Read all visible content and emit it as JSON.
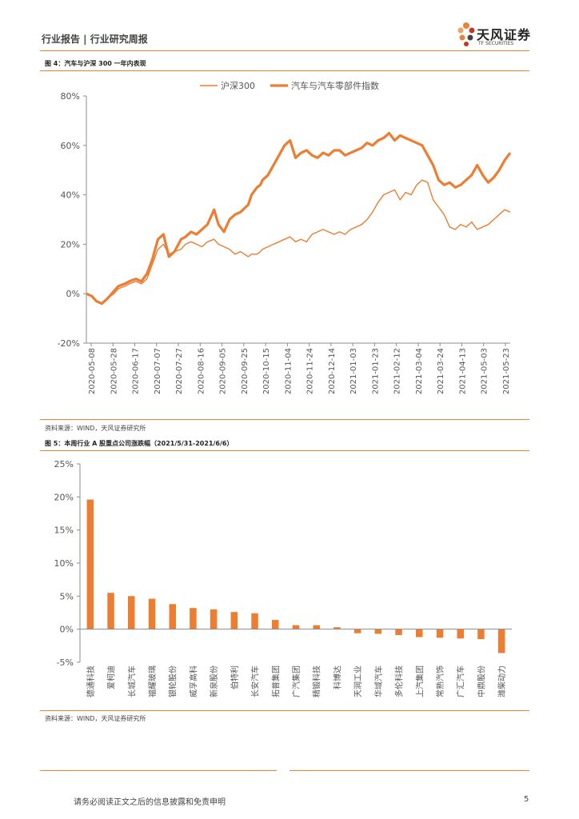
{
  "header": {
    "left_text": "行业报告 | 行业研究周报",
    "logo_cn": "天风证券",
    "logo_en": "TF SECURITIES"
  },
  "figure4": {
    "title": "图 4：汽车与沪深 300 一年内表现",
    "source": "资料来源：WIND，天风证券研究所"
  },
  "figure5": {
    "title": "图 5：本周行业 A 股重点公司涨跌幅（2021/5/31-2021/6/6）",
    "source": "资料来源：WIND，天风证券研究所"
  },
  "footer": {
    "disclaimer": "请务必阅读正文之后的信息披露和免责申明",
    "page": "5"
  },
  "colors": {
    "accent": "#e8833a",
    "series": "#ed7d31"
  },
  "chart_data": [
    {
      "type": "line",
      "title": "",
      "xlabel": "",
      "ylabel": "",
      "ylim": [
        -20,
        80
      ],
      "yticks": [
        "-20%",
        "0%",
        "20%",
        "40%",
        "60%",
        "80%"
      ],
      "xticks": [
        "2020-05-08",
        "2020-05-28",
        "2020-06-17",
        "2020-07-07",
        "2020-07-27",
        "2020-08-16",
        "2020-09-05",
        "2020-09-25",
        "2020-10-15",
        "2020-11-04",
        "2020-11-24",
        "2020-12-14",
        "2021-01-03",
        "2021-01-23",
        "2021-02-12",
        "2021-03-04",
        "2021-03-24",
        "2021-04-13",
        "2021-05-03",
        "2021-05-23"
      ],
      "legend_position": "top-center",
      "series": [
        {
          "name": "沪深300",
          "x": [
            0,
            5,
            9,
            14,
            19,
            25,
            29,
            35,
            39,
            45,
            50,
            55,
            60,
            65,
            70,
            75,
            80,
            86,
            90,
            95,
            100,
            105,
            110,
            116,
            120,
            125,
            130,
            135,
            140,
            147,
            150,
            155,
            158,
            160,
            165,
            170,
            175,
            180,
            185,
            190,
            195,
            200,
            205,
            210,
            215,
            220,
            225,
            230,
            235,
            240,
            245,
            250,
            255,
            260,
            265,
            270,
            275,
            280,
            285,
            290,
            295,
            300,
            305,
            310,
            315,
            320,
            325,
            330,
            335,
            340,
            345,
            350,
            355,
            360,
            365,
            370,
            375,
            380,
            385
          ],
          "values": [
            0,
            -1,
            -3,
            -4,
            -2,
            0,
            2,
            3,
            4,
            5,
            4,
            6,
            12,
            18,
            20,
            16,
            17,
            18,
            20,
            21,
            20,
            19,
            21,
            22,
            20,
            19,
            18,
            16,
            17,
            15,
            16,
            16,
            17,
            18,
            19,
            20,
            21,
            22,
            23,
            21,
            22,
            21,
            24,
            25,
            26,
            25,
            24,
            25,
            24,
            26,
            27,
            28,
            30,
            33,
            37,
            40,
            41,
            42,
            38,
            41,
            40,
            44,
            46,
            45,
            38,
            35,
            32,
            27,
            26,
            28,
            27,
            29,
            26,
            27,
            28,
            30,
            32,
            34,
            33
          ]
        },
        {
          "name": "汽车与汽车零部件指数",
          "x": [
            0,
            5,
            9,
            14,
            19,
            25,
            29,
            35,
            39,
            45,
            50,
            55,
            60,
            65,
            70,
            75,
            80,
            86,
            90,
            95,
            100,
            105,
            110,
            116,
            120,
            125,
            130,
            135,
            140,
            147,
            150,
            155,
            158,
            160,
            165,
            170,
            175,
            180,
            185,
            190,
            195,
            200,
            205,
            210,
            215,
            220,
            225,
            230,
            235,
            240,
            245,
            250,
            255,
            260,
            265,
            270,
            275,
            280,
            285,
            290,
            295,
            300,
            305,
            310,
            315,
            320,
            325,
            330,
            335,
            340,
            345,
            350,
            355,
            360,
            365,
            370,
            375,
            380,
            385
          ],
          "values": [
            0,
            -1,
            -3,
            -4,
            -2,
            1,
            3,
            4,
            5,
            6,
            5,
            8,
            14,
            22,
            24,
            15,
            17,
            22,
            23,
            25,
            24,
            26,
            28,
            34,
            28,
            25,
            30,
            32,
            33,
            36,
            40,
            43,
            44,
            46,
            48,
            52,
            56,
            60,
            62,
            55,
            57,
            58,
            56,
            55,
            57,
            56,
            58,
            58,
            56,
            57,
            58,
            59,
            61,
            60,
            62,
            63,
            65,
            62,
            64,
            63,
            62,
            61,
            60,
            56,
            52,
            46,
            44,
            45,
            43,
            44,
            46,
            48,
            52,
            48,
            45,
            47,
            50,
            54,
            57
          ]
        }
      ]
    },
    {
      "type": "bar",
      "title": "",
      "xlabel": "",
      "ylabel": "",
      "ylim": [
        -5,
        25
      ],
      "yticks": [
        "-5%",
        "0%",
        "5%",
        "10%",
        "15%",
        "20%",
        "25%"
      ],
      "categories": [
        "德通科技",
        "爱柯迪",
        "长城汽车",
        "福耀玻璃",
        "银轮股份",
        "威孚高科",
        "新泉股份",
        "伯特利",
        "长安汽车",
        "拓普集团",
        "广汽集团",
        "精锻科技",
        "科博达",
        "天润工业",
        "华域汽车",
        "多伦科技",
        "上汽集团",
        "常熟汽饰",
        "广汇汽车",
        "中鼎股份",
        "潍柴动力"
      ],
      "values": [
        19.6,
        5.5,
        5.0,
        4.6,
        3.8,
        3.2,
        3.0,
        2.6,
        2.4,
        1.4,
        0.6,
        0.6,
        0.3,
        -0.6,
        -0.7,
        -0.9,
        -1.2,
        -1.3,
        -1.4,
        -1.5,
        -3.6
      ]
    }
  ]
}
